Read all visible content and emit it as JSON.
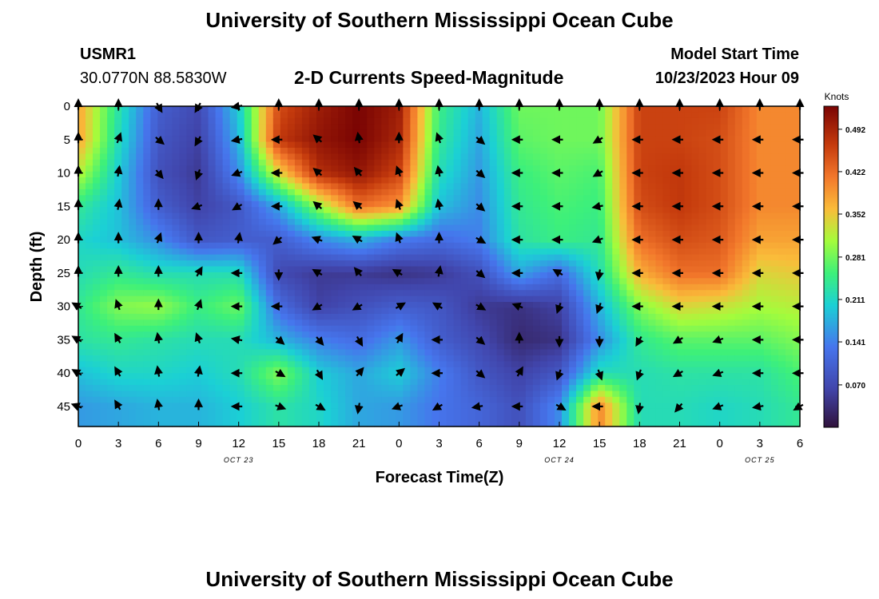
{
  "header": {
    "title": "University of Southern Mississippi Ocean Cube",
    "station_id": "USMR1",
    "coordinates": "30.0770N  88.5830W",
    "subtitle": "2-D Currents Speed-Magnitude",
    "model_start_label": "Model Start Time",
    "model_start_value": "10/23/2023 Hour 09"
  },
  "footer": {
    "title": "University of Southern Mississippi Ocean Cube"
  },
  "chart_data": {
    "type": "heatmap",
    "xlabel": "Forecast Time(Z)",
    "ylabel": "Depth (ft)",
    "x_tick_labels": [
      "0",
      "3",
      "6",
      "9",
      "12",
      "15",
      "18",
      "21",
      "0",
      "3",
      "6",
      "9",
      "12",
      "15",
      "18",
      "21",
      "0",
      "3",
      "6"
    ],
    "date_labels": [
      {
        "label": "OCT 23",
        "at_tick": 4
      },
      {
        "label": "OCT 24",
        "at_tick": 12
      },
      {
        "label": "OCT 25",
        "at_tick": 17
      }
    ],
    "y_ticks": [
      0,
      5,
      10,
      15,
      20,
      25,
      30,
      35,
      40,
      45
    ],
    "ylim": [
      0,
      48
    ],
    "colorbar": {
      "unit_label": "Knots",
      "range": [
        0.0,
        0.53
      ],
      "tick_values": [
        0.492,
        0.422,
        0.352,
        0.281,
        0.211,
        0.141,
        0.07
      ],
      "tick_labels": [
        "0.492",
        "0.422",
        "0.352",
        "0.281",
        "0.211",
        "0.141",
        "0.070"
      ]
    },
    "rows_depth_ft": [
      0,
      5,
      10,
      15,
      20,
      25,
      30,
      35,
      40,
      45
    ],
    "speed_knots": [
      [
        0.38,
        0.23,
        0.1,
        0.07,
        0.2,
        0.45,
        0.5,
        0.53,
        0.5,
        0.25,
        0.18,
        0.28,
        0.28,
        0.28,
        0.46,
        0.46,
        0.46,
        0.4,
        0.4
      ],
      [
        0.38,
        0.22,
        0.09,
        0.06,
        0.18,
        0.47,
        0.51,
        0.53,
        0.49,
        0.24,
        0.17,
        0.27,
        0.28,
        0.28,
        0.46,
        0.46,
        0.45,
        0.4,
        0.4
      ],
      [
        0.32,
        0.2,
        0.08,
        0.05,
        0.15,
        0.34,
        0.48,
        0.51,
        0.46,
        0.22,
        0.16,
        0.25,
        0.27,
        0.26,
        0.46,
        0.47,
        0.45,
        0.4,
        0.4
      ],
      [
        0.24,
        0.19,
        0.1,
        0.06,
        0.09,
        0.17,
        0.3,
        0.42,
        0.39,
        0.19,
        0.15,
        0.24,
        0.26,
        0.25,
        0.45,
        0.47,
        0.45,
        0.4,
        0.4
      ],
      [
        0.21,
        0.19,
        0.15,
        0.09,
        0.1,
        0.1,
        0.15,
        0.18,
        0.14,
        0.12,
        0.14,
        0.23,
        0.25,
        0.24,
        0.42,
        0.45,
        0.44,
        0.38,
        0.38
      ],
      [
        0.22,
        0.24,
        0.22,
        0.22,
        0.22,
        0.07,
        0.05,
        0.05,
        0.04,
        0.05,
        0.08,
        0.17,
        0.12,
        0.22,
        0.37,
        0.42,
        0.42,
        0.34,
        0.35
      ],
      [
        0.24,
        0.29,
        0.3,
        0.25,
        0.28,
        0.12,
        0.06,
        0.08,
        0.1,
        0.09,
        0.05,
        0.04,
        0.06,
        0.18,
        0.29,
        0.34,
        0.33,
        0.31,
        0.32
      ],
      [
        0.23,
        0.24,
        0.23,
        0.22,
        0.22,
        0.18,
        0.14,
        0.12,
        0.16,
        0.1,
        0.07,
        0.03,
        0.04,
        0.15,
        0.24,
        0.27,
        0.27,
        0.27,
        0.29
      ],
      [
        0.19,
        0.21,
        0.21,
        0.2,
        0.22,
        0.29,
        0.2,
        0.17,
        0.2,
        0.14,
        0.09,
        0.06,
        0.09,
        0.22,
        0.22,
        0.23,
        0.23,
        0.23,
        0.26
      ],
      [
        0.16,
        0.17,
        0.18,
        0.18,
        0.2,
        0.23,
        0.21,
        0.17,
        0.16,
        0.13,
        0.11,
        0.08,
        0.15,
        0.4,
        0.22,
        0.22,
        0.21,
        0.22,
        0.24
      ]
    ],
    "direction_deg": [
      [
        0,
        0,
        150,
        210,
        260,
        0,
        0,
        0,
        0,
        0,
        0,
        0,
        0,
        0,
        0,
        0,
        0,
        0,
        0
      ],
      [
        0,
        20,
        130,
        210,
        260,
        270,
        310,
        350,
        0,
        340,
        130,
        270,
        270,
        240,
        270,
        270,
        270,
        270,
        270
      ],
      [
        0,
        10,
        140,
        200,
        250,
        270,
        310,
        320,
        340,
        350,
        130,
        270,
        270,
        240,
        270,
        270,
        270,
        270,
        270
      ],
      [
        0,
        10,
        0,
        250,
        240,
        270,
        310,
        310,
        340,
        350,
        130,
        270,
        270,
        260,
        270,
        270,
        270,
        270,
        270
      ],
      [
        0,
        0,
        20,
        0,
        10,
        230,
        290,
        300,
        340,
        0,
        120,
        270,
        270,
        250,
        270,
        270,
        270,
        270,
        270
      ],
      [
        0,
        0,
        0,
        30,
        270,
        180,
        300,
        320,
        300,
        10,
        130,
        270,
        300,
        190,
        270,
        270,
        270,
        270,
        270
      ],
      [
        300,
        340,
        0,
        20,
        270,
        270,
        240,
        240,
        60,
        300,
        120,
        290,
        200,
        200,
        270,
        270,
        270,
        270,
        270
      ],
      [
        300,
        330,
        350,
        340,
        280,
        130,
        140,
        150,
        30,
        270,
        130,
        0,
        180,
        180,
        210,
        240,
        250,
        270,
        270
      ],
      [
        300,
        330,
        350,
        10,
        270,
        120,
        150,
        40,
        50,
        270,
        130,
        30,
        200,
        160,
        200,
        240,
        250,
        270,
        270
      ],
      [
        290,
        330,
        350,
        0,
        270,
        110,
        120,
        190,
        250,
        240,
        260,
        270,
        120,
        270,
        190,
        220,
        250,
        260,
        240
      ]
    ]
  }
}
